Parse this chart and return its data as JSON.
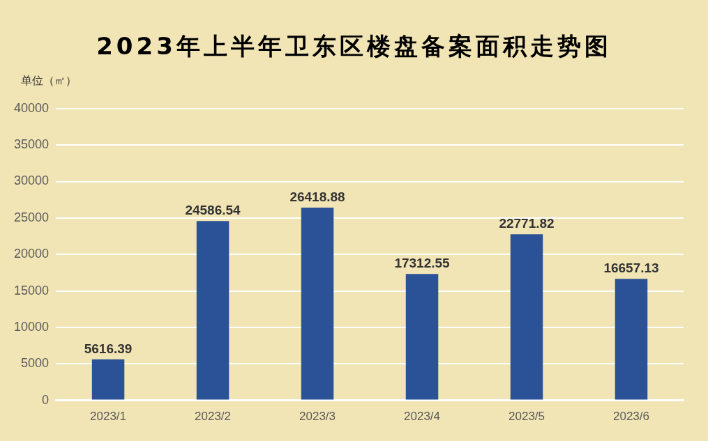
{
  "chart_data": {
    "type": "bar",
    "title": "2023年上半年卫东区楼盘备案面积走势图",
    "ylabel": "单位（㎡）",
    "categories": [
      "2023/1",
      "2023/2",
      "2023/3",
      "2023/4",
      "2023/5",
      "2023/6"
    ],
    "values": [
      5616.39,
      24586.54,
      26418.88,
      17312.55,
      22771.82,
      16657.13
    ],
    "color": "#2b5297",
    "ylim": [
      0,
      40000
    ],
    "yticks": [
      0,
      5000,
      10000,
      15000,
      20000,
      25000,
      30000,
      35000,
      40000
    ],
    "grid": "y",
    "legend": false,
    "data_labels": true
  }
}
